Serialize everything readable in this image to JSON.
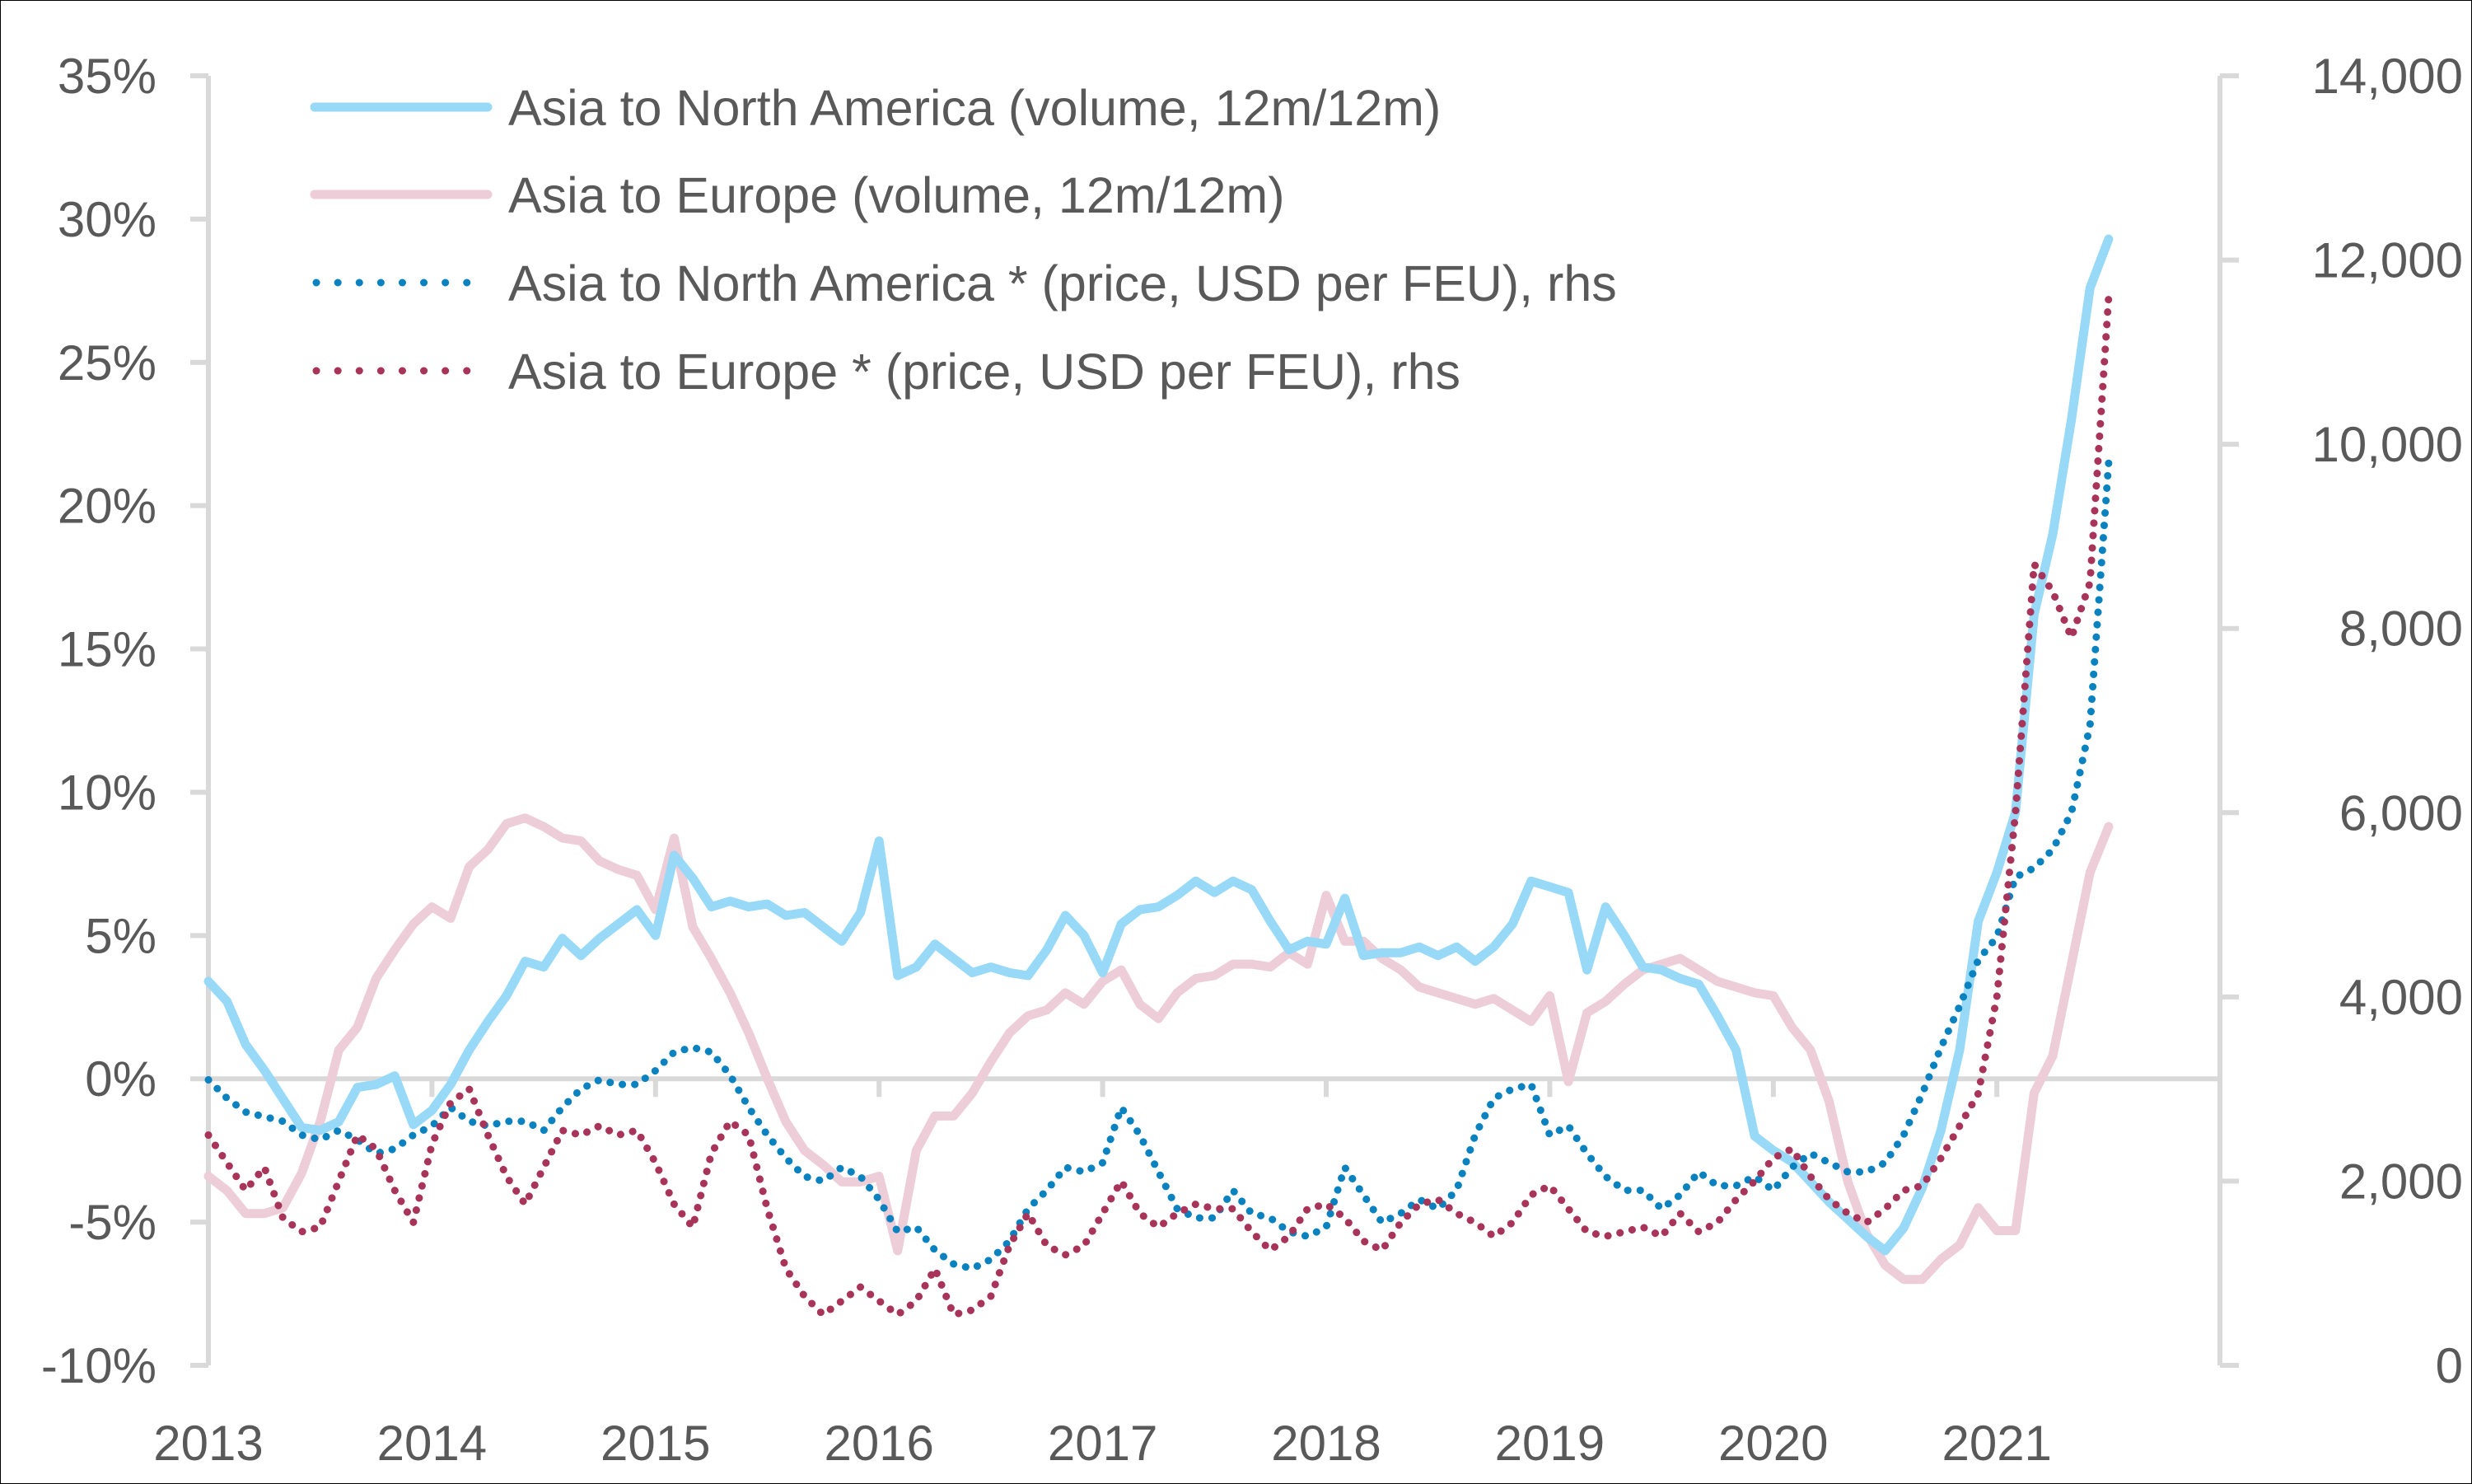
{
  "chart_data": {
    "type": "line",
    "title": "",
    "xlabel": "",
    "ylabel": "",
    "x_start": "2013-01",
    "x_frequency": "monthly",
    "x_tick_labels": [
      "2013",
      "2014",
      "2015",
      "2016",
      "2017",
      "2018",
      "2019",
      "2020",
      "2021"
    ],
    "x_range": [
      2013,
      2021.95
    ],
    "y_left": {
      "range": [
        -10,
        35
      ],
      "unit": "%",
      "tick_values": [
        35,
        30,
        25,
        20,
        15,
        10,
        5,
        0,
        -5,
        -10
      ],
      "tick_labels": [
        "35%",
        "30%",
        "25%",
        "20%",
        "15%",
        "10%",
        "5%",
        "0%",
        "-5%",
        "-10%"
      ]
    },
    "y_right": {
      "range": [
        0,
        14000
      ],
      "tick_values": [
        14000,
        12000,
        10000,
        8000,
        6000,
        4000,
        2000,
        0
      ],
      "tick_labels": [
        "14,000",
        "12,000",
        "10,000",
        "8,000",
        "6,000",
        "4,000",
        "2,000",
        "0"
      ]
    },
    "zero_line": true,
    "grid": false,
    "legend_position": "top-left",
    "series": [
      {
        "name": "Asia to North America (volume, 12m/12m)",
        "axis": "left",
        "style": "solid",
        "color": "#97d9f7",
        "values": [
          3.4,
          2.7,
          1.2,
          0.3,
          -0.7,
          -1.7,
          -1.8,
          -1.5,
          -0.3,
          -0.2,
          0.1,
          -1.6,
          -1.1,
          -0.2,
          1.0,
          2.0,
          2.9,
          4.1,
          3.9,
          4.9,
          4.3,
          4.9,
          5.4,
          5.9,
          5.0,
          7.8,
          7.0,
          6.0,
          6.2,
          6.0,
          6.1,
          5.7,
          5.8,
          5.3,
          4.8,
          5.8,
          8.3,
          3.6,
          3.9,
          4.7,
          4.2,
          3.7,
          3.9,
          3.7,
          3.6,
          4.5,
          5.7,
          5.0,
          3.7,
          5.4,
          5.9,
          6.0,
          6.4,
          6.9,
          6.5,
          6.9,
          6.6,
          5.5,
          4.5,
          4.8,
          4.7,
          6.3,
          4.3,
          4.4,
          4.4,
          4.6,
          4.3,
          4.6,
          4.1,
          4.6,
          5.4,
          6.9,
          6.7,
          6.5,
          3.8,
          6.0,
          5.0,
          3.9,
          3.8,
          3.5,
          3.3,
          2.2,
          1.0,
          -2.0,
          -2.5,
          -2.9,
          -3.6,
          -4.3,
          -4.9,
          -5.5,
          -6.0,
          -5.2,
          -3.8,
          -1.8,
          1.0,
          5.5,
          7.2,
          9.3,
          16.2,
          19.0,
          23.0,
          27.6,
          29.3
        ]
      },
      {
        "name": "Asia to Europe (volume, 12m/12m)",
        "axis": "left",
        "style": "solid",
        "color": "#edcdd8",
        "values": [
          -3.4,
          -3.9,
          -4.7,
          -4.7,
          -4.5,
          -3.3,
          -1.5,
          1.0,
          1.8,
          3.5,
          4.5,
          5.4,
          6.0,
          5.6,
          7.4,
          8.0,
          8.9,
          9.1,
          8.8,
          8.4,
          8.3,
          7.6,
          7.3,
          7.1,
          5.9,
          8.4,
          5.3,
          4.2,
          3.0,
          1.6,
          0.0,
          -1.5,
          -2.5,
          -3.0,
          -3.6,
          -3.6,
          -3.4,
          -6.0,
          -2.5,
          -1.3,
          -1.3,
          -0.5,
          0.6,
          1.6,
          2.2,
          2.4,
          3.0,
          2.6,
          3.4,
          3.8,
          2.6,
          2.1,
          3.0,
          3.5,
          3.6,
          4.0,
          4.0,
          3.9,
          4.4,
          4.0,
          6.4,
          4.8,
          4.8,
          4.2,
          3.8,
          3.2,
          3.0,
          2.8,
          2.6,
          2.8,
          2.4,
          2.0,
          2.9,
          -0.1,
          2.3,
          2.7,
          3.3,
          3.8,
          4.0,
          4.2,
          3.8,
          3.4,
          3.2,
          3.0,
          2.9,
          1.8,
          1.0,
          -0.8,
          -3.6,
          -5.4,
          -6.5,
          -7.0,
          -7.0,
          -6.3,
          -5.8,
          -4.5,
          -5.3,
          -5.3,
          -0.5,
          0.8,
          4.0,
          7.2,
          8.8
        ]
      },
      {
        "name": "Asia to North America * (price, USD per FEU), rhs",
        "axis": "right",
        "style": "dotted",
        "color": "#0a82bf",
        "values": [
          3100,
          2900,
          2750,
          2700,
          2650,
          2500,
          2450,
          2550,
          2450,
          2300,
          2350,
          2500,
          2600,
          2800,
          2650,
          2600,
          2650,
          2650,
          2550,
          2800,
          3000,
          3100,
          3050,
          3050,
          3200,
          3400,
          3450,
          3400,
          3150,
          2800,
          2500,
          2250,
          2050,
          2000,
          2150,
          2050,
          1800,
          1450,
          1500,
          1250,
          1100,
          1050,
          1150,
          1350,
          1700,
          1900,
          2150,
          2100,
          2200,
          2800,
          2500,
          2100,
          1700,
          1600,
          1600,
          1900,
          1650,
          1600,
          1450,
          1400,
          1500,
          2150,
          1850,
          1550,
          1650,
          1800,
          1700,
          1900,
          2500,
          2900,
          3000,
          3050,
          2500,
          2600,
          2300,
          2050,
          1900,
          1900,
          1700,
          1850,
          2100,
          1950,
          1950,
          2050,
          1900,
          2150,
          2300,
          2200,
          2100,
          2100,
          2200,
          2500,
          2950,
          3450,
          3900,
          4400,
          4650,
          5300,
          5400,
          5600,
          6000,
          6950,
          9800
        ]
      },
      {
        "name": "Asia to Europe * (price, USD per FEU), rhs",
        "axis": "right",
        "style": "dotted",
        "color": "#a8345a",
        "values": [
          2500,
          2200,
          1900,
          2150,
          1600,
          1450,
          1500,
          2000,
          2500,
          2350,
          1900,
          1550,
          2400,
          2850,
          3000,
          2500,
          2050,
          1750,
          2150,
          2550,
          2500,
          2600,
          2500,
          2550,
          2200,
          1750,
          1500,
          2300,
          2650,
          2500,
          1700,
          1050,
          750,
          550,
          700,
          850,
          700,
          550,
          700,
          1050,
          550,
          600,
          750,
          1300,
          1650,
          1300,
          1200,
          1300,
          1650,
          2000,
          1650,
          1500,
          1650,
          1750,
          1700,
          1700,
          1450,
          1250,
          1400,
          1700,
          1750,
          1600,
          1350,
          1250,
          1550,
          1750,
          1800,
          1650,
          1550,
          1400,
          1550,
          1850,
          1950,
          1700,
          1450,
          1400,
          1450,
          1500,
          1400,
          1650,
          1450,
          1550,
          1800,
          2000,
          2250,
          2350,
          2050,
          1800,
          1650,
          1550,
          1700,
          1900,
          1950,
          2250,
          2600,
          2950,
          4000,
          6000,
          8700,
          8400,
          7900,
          8500,
          11600
        ]
      }
    ]
  },
  "colors": {
    "axis": "#d9d9d9",
    "text": "#595959"
  }
}
